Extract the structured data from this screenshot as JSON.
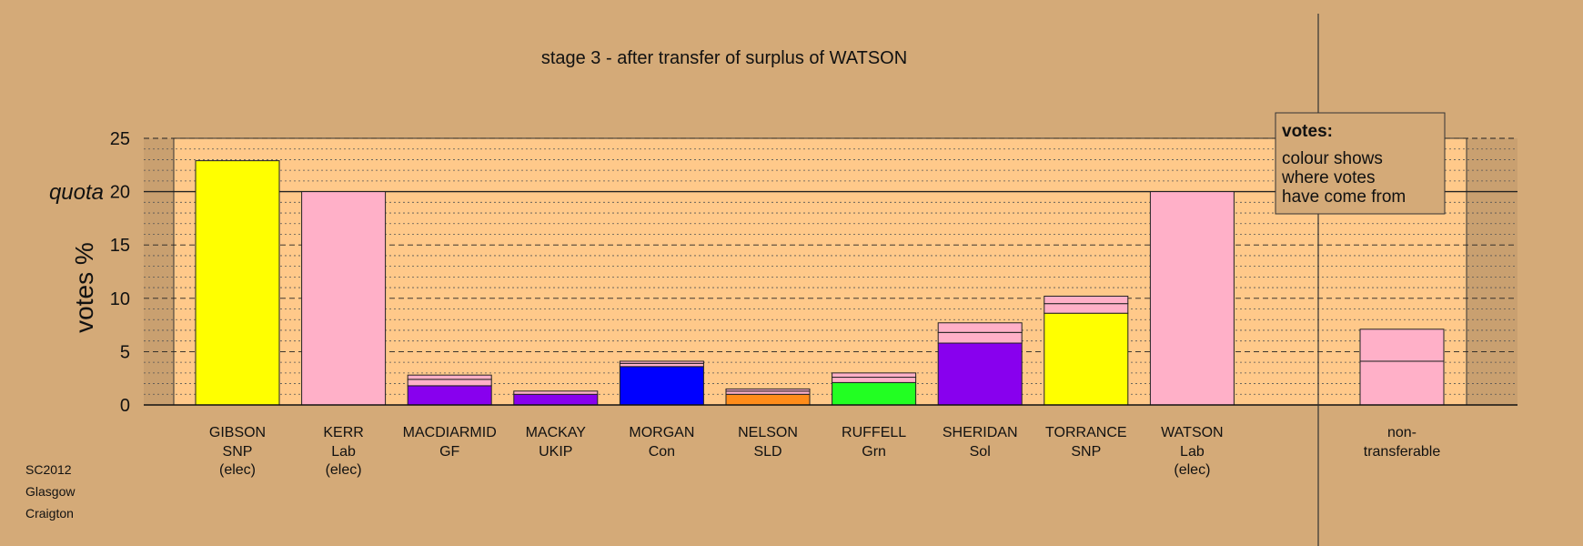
{
  "chart_data": {
    "type": "bar",
    "title": "stage 3 - after transfer of surplus of WATSON",
    "ylabel": "votes %",
    "ylim": [
      0,
      25
    ],
    "yticks": [
      0,
      5,
      10,
      15,
      20,
      25
    ],
    "quota": 20,
    "quota_label": "quota",
    "categories": [
      {
        "name": "GIBSON",
        "party": "SNP",
        "status": "(elec)",
        "segments": [
          {
            "value": 22.9,
            "color": "#ffff00"
          }
        ]
      },
      {
        "name": "KERR",
        "party": "Lab",
        "status": "(elec)",
        "segments": [
          {
            "value": 20.0,
            "color": "#ffb0c8"
          }
        ]
      },
      {
        "name": "MACDIARMID",
        "party": "GF",
        "status": "",
        "segments": [
          {
            "value": 1.8,
            "color": "#8800ee"
          },
          {
            "value": 0.6,
            "color": "#ffb0c8"
          },
          {
            "value": 0.4,
            "color": "#ffb0c8"
          }
        ]
      },
      {
        "name": "MACKAY",
        "party": "UKIP",
        "status": "",
        "segments": [
          {
            "value": 1.0,
            "color": "#8800ee"
          },
          {
            "value": 0.3,
            "color": "#ffb0c8"
          }
        ]
      },
      {
        "name": "MORGAN",
        "party": "Con",
        "status": "",
        "segments": [
          {
            "value": 3.6,
            "color": "#0000ff"
          },
          {
            "value": 0.3,
            "color": "#ffb0c8"
          },
          {
            "value": 0.2,
            "color": "#ffb0c8"
          }
        ]
      },
      {
        "name": "NELSON",
        "party": "SLD",
        "status": "",
        "segments": [
          {
            "value": 1.0,
            "color": "#ff8c1a"
          },
          {
            "value": 0.3,
            "color": "#ffb0c8"
          },
          {
            "value": 0.2,
            "color": "#ffb0c8"
          }
        ]
      },
      {
        "name": "RUFFELL",
        "party": "Grn",
        "status": "",
        "segments": [
          {
            "value": 2.1,
            "color": "#22ff22"
          },
          {
            "value": 0.5,
            "color": "#ffb0c8"
          },
          {
            "value": 0.4,
            "color": "#ffb0c8"
          }
        ]
      },
      {
        "name": "SHERIDAN",
        "party": "Sol",
        "status": "",
        "segments": [
          {
            "value": 5.8,
            "color": "#8800ee"
          },
          {
            "value": 1.0,
            "color": "#ffb0c8"
          },
          {
            "value": 0.9,
            "color": "#ffb0c8"
          }
        ]
      },
      {
        "name": "TORRANCE",
        "party": "SNP",
        "status": "",
        "segments": [
          {
            "value": 8.6,
            "color": "#ffff00"
          },
          {
            "value": 0.9,
            "color": "#ffb0c8"
          },
          {
            "value": 0.7,
            "color": "#ffb0c8"
          }
        ]
      },
      {
        "name": "WATSON",
        "party": "Lab",
        "status": "(elec)",
        "segments": [
          {
            "value": 20.0,
            "color": "#ffb0c8"
          }
        ]
      }
    ],
    "nontransferable": {
      "label_line1": "non-",
      "label_line2": "transferable",
      "segments": [
        {
          "value": 4.1,
          "color": "#ffb0c8"
        },
        {
          "value": 3.0,
          "color": "#ffb0c8"
        }
      ]
    },
    "legend": {
      "heading": "votes:",
      "lines": [
        "colour shows",
        "where votes",
        "have come from"
      ],
      "placement": "top-right"
    },
    "grid": true
  },
  "footer": [
    "SC2012",
    "Glasgow",
    "Craigton"
  ],
  "colors": {
    "background": "#d4aa78",
    "plot_area": "#ffc98a",
    "side_shade": "#c9a070"
  }
}
